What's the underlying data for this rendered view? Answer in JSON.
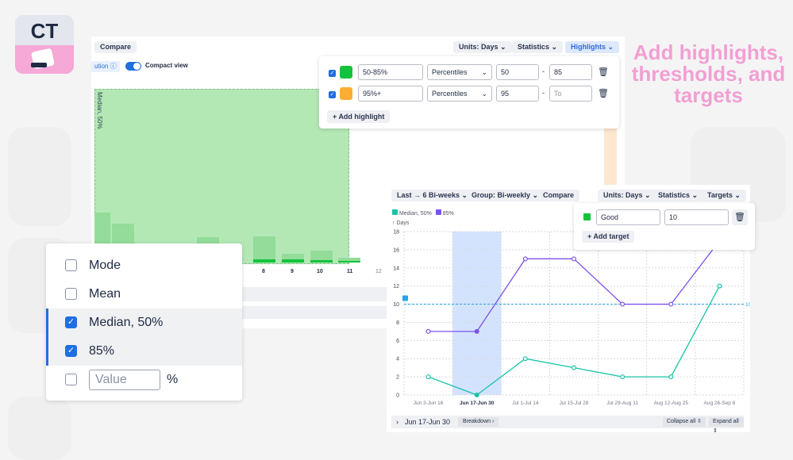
{
  "logo": {
    "text": "CT"
  },
  "marketing": {
    "line1": "Add highlights,",
    "line2": "thresholds, and",
    "line3": "targets"
  },
  "back_panel": {
    "compare": "Compare",
    "units": "Units: Days",
    "statistics": "Statistics",
    "highlights": "Highlights",
    "distribution_label": "ution",
    "compact_view": "Compact view",
    "compact_view_on": true,
    "median_label": "Median, 50%",
    "x_ticks": [
      "8",
      "9",
      "10",
      "11",
      "12"
    ]
  },
  "highlights_popup": {
    "rows": [
      {
        "checked": true,
        "color": "#14c33d",
        "name": "50-85%",
        "type": "Percentiles",
        "from": "50",
        "to": "85",
        "to_placeholder": ""
      },
      {
        "checked": true,
        "color": "#fbae33",
        "name": "95%+",
        "type": "Percentiles",
        "from": "95",
        "to": "",
        "to_placeholder": "To"
      }
    ],
    "add_label": "Add highlight"
  },
  "front_chart": {
    "range": "Last → 6 Bi-weeks",
    "group": "Group: Bi-weekly",
    "compare": "Compare",
    "units": "Units: Days",
    "statistics": "Statistics",
    "targets": "Targets",
    "breadcrumb": "Jun 17-Jun 30",
    "breakdown": "Breakdown",
    "collapse_all": "Collapse all",
    "expand_all": "Expand all"
  },
  "targets_popup": {
    "color": "#14c33d",
    "name": "Good",
    "value": "10",
    "add_label": "Add target"
  },
  "statistics_menu": {
    "items": [
      {
        "label": "Mode",
        "checked": false
      },
      {
        "label": "Mean",
        "checked": false
      },
      {
        "label": "Median, 50%",
        "checked": true
      },
      {
        "label": "85%",
        "checked": true
      }
    ],
    "value_placeholder": "Value",
    "value_unit": "%"
  },
  "chart_data": {
    "type": "line",
    "ylabel": "↑ Days",
    "categories": [
      "Jun 3-Jun 16",
      "Jun 17-Jun 30",
      "Jul 1-Jul 14",
      "Jul 15-Jul 28",
      "Jul 29-Aug 11",
      "Aug 12-Aug 25",
      "Aug 26-Sep 8"
    ],
    "selected_category": "Jun 17-Jun 30",
    "ylim": [
      0,
      18
    ],
    "y_ticks": [
      0,
      2,
      4,
      6,
      8,
      10,
      12,
      14,
      16,
      18
    ],
    "grid": true,
    "legend_placement": "top-left",
    "target": {
      "value": 10,
      "label": "10",
      "color": "#2aa3e8"
    },
    "series": [
      {
        "name": "Median, 50%",
        "color": "#19c3a7",
        "values": [
          2,
          0,
          4,
          3,
          2,
          2,
          12
        ]
      },
      {
        "name": "85%",
        "color": "#7b52ea",
        "values": [
          7,
          7,
          15,
          15,
          10,
          10,
          17
        ]
      }
    ]
  }
}
